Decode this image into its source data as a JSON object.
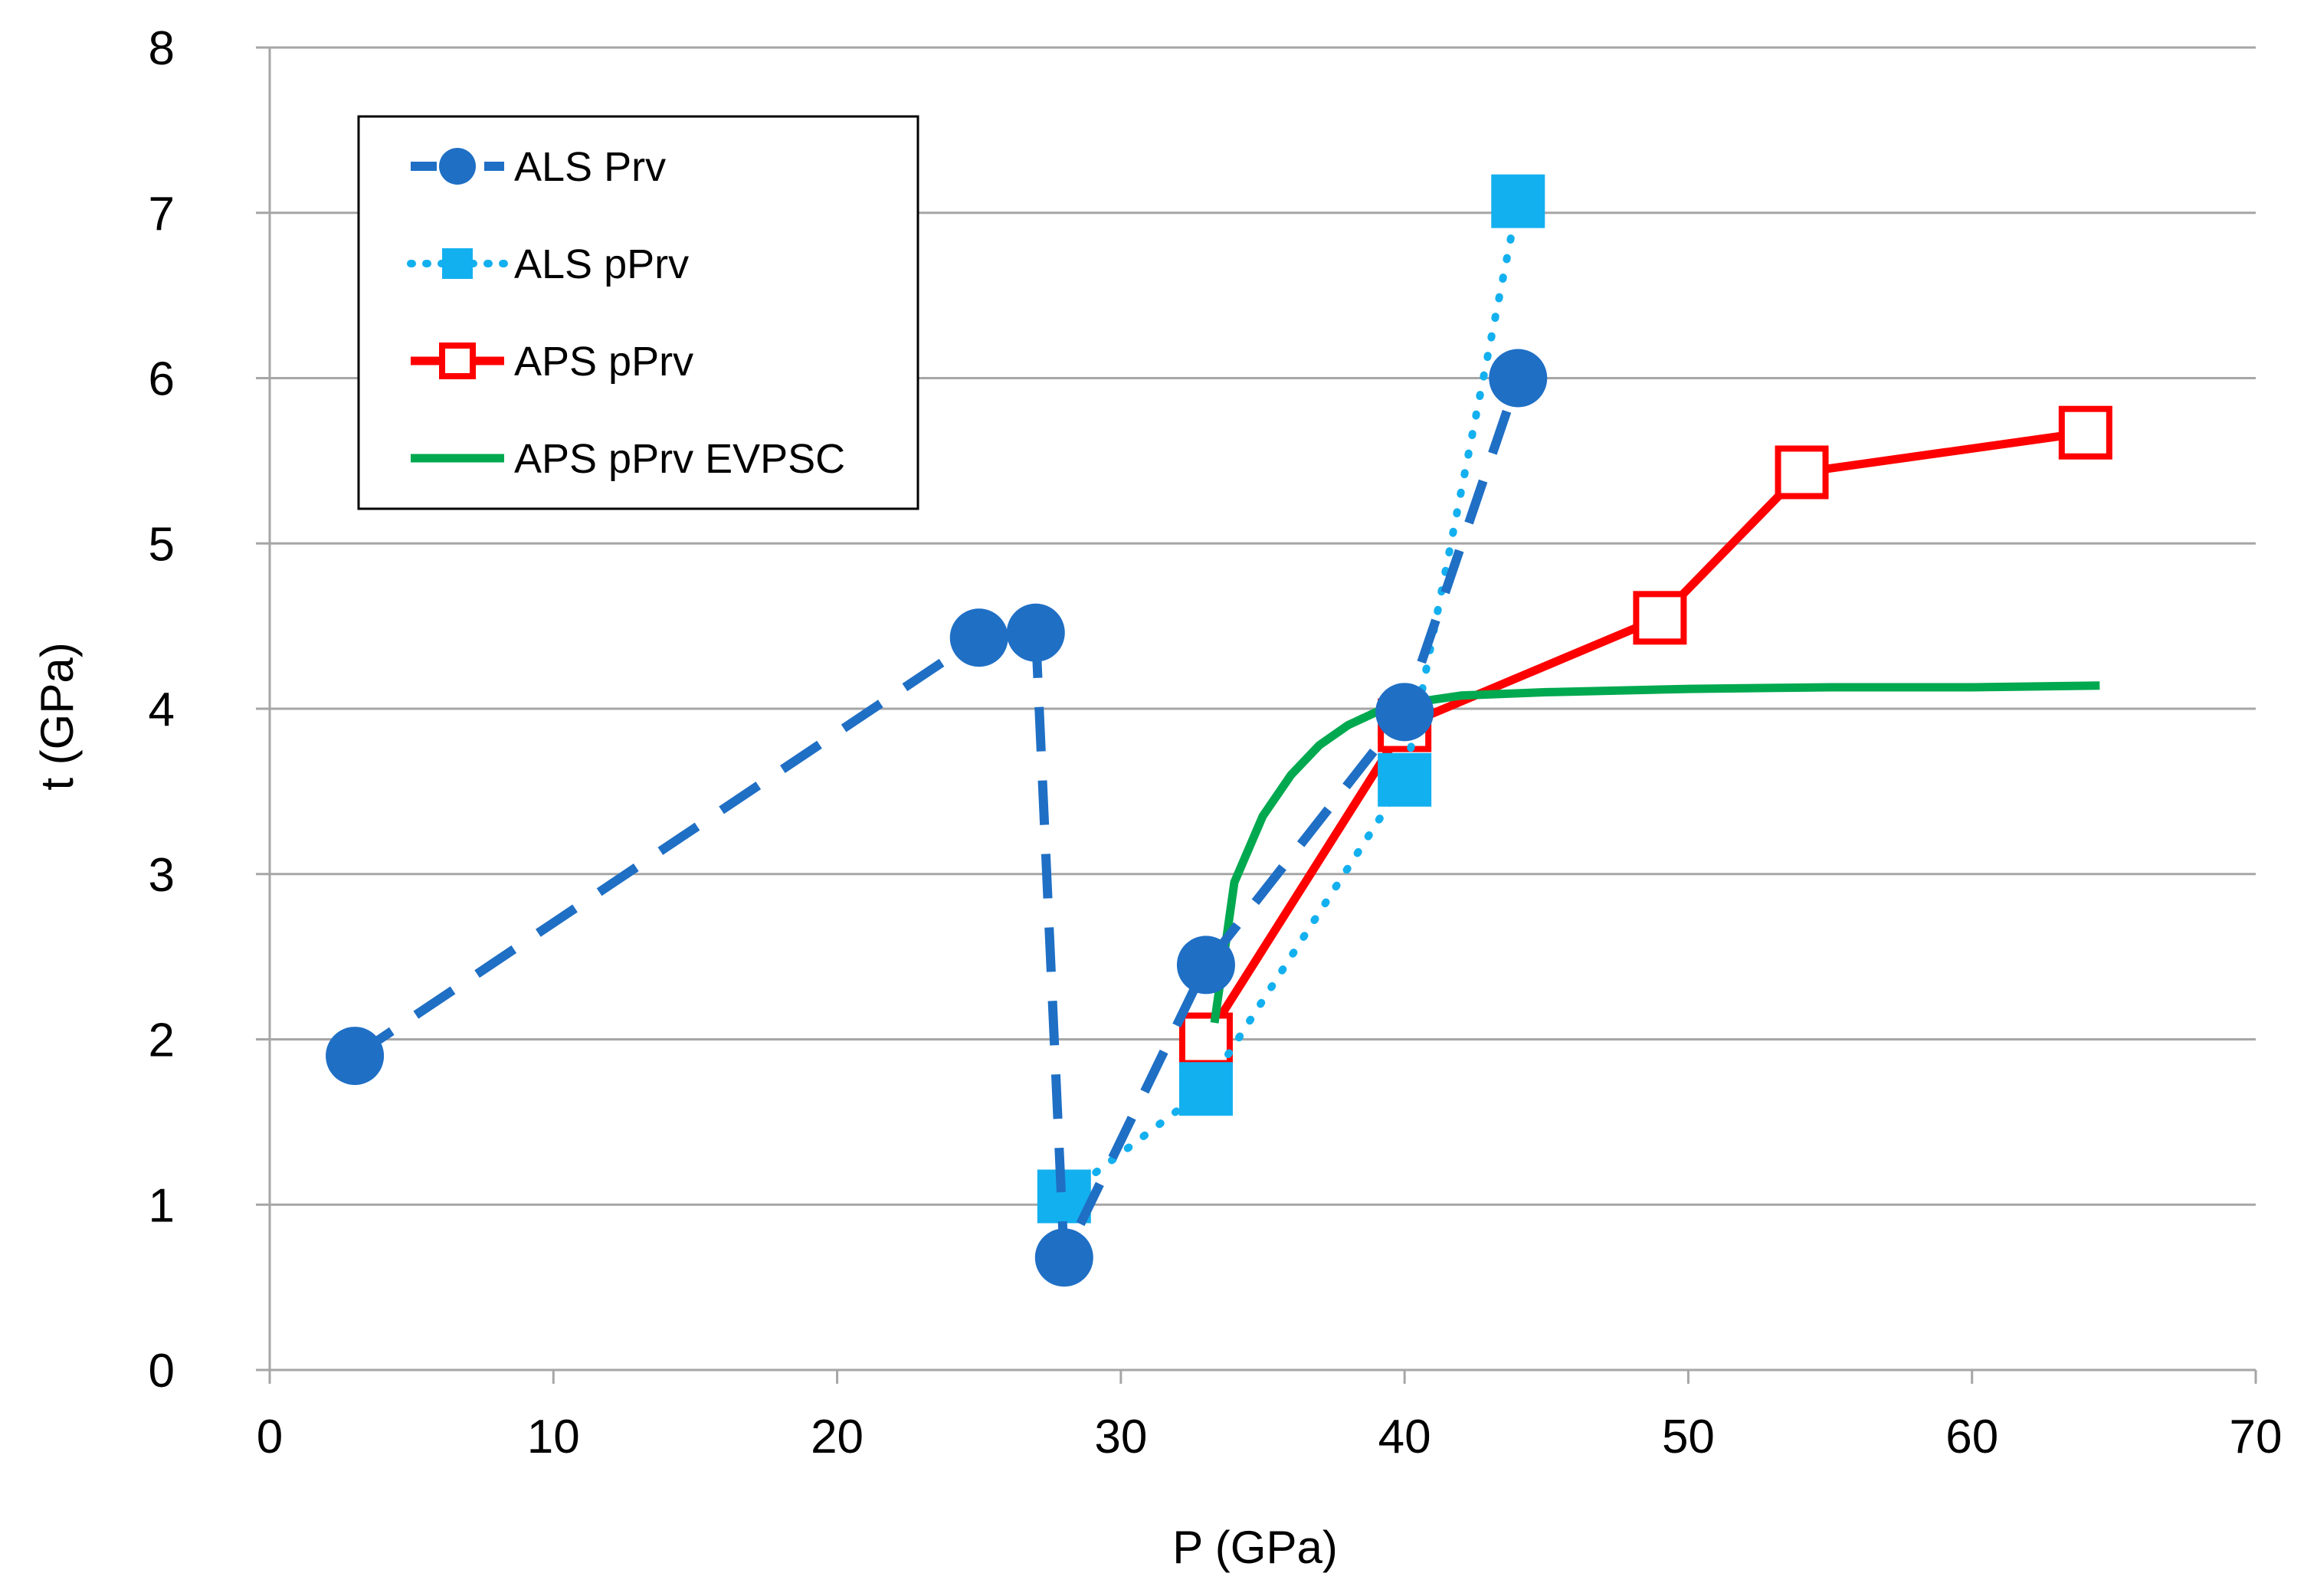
{
  "chart_data": {
    "type": "line",
    "title": "",
    "xlabel": "P (GPa)",
    "ylabel": "t (GPa)",
    "xlim": [
      0,
      70
    ],
    "ylim": [
      0,
      8
    ],
    "xticks": [
      0,
      10,
      20,
      30,
      40,
      50,
      60,
      70
    ],
    "yticks": [
      0,
      1,
      2,
      3,
      4,
      5,
      6,
      7,
      8
    ],
    "grid": "horizontal",
    "legend_position": "top-left",
    "series": [
      {
        "name": "ALS Prv",
        "color": "#1F6FC5",
        "line_style": "dashed",
        "marker": "circle-filled",
        "x": [
          3,
          25,
          27,
          28,
          33,
          40,
          44
        ],
        "y": [
          1.9,
          4.43,
          4.46,
          0.68,
          2.45,
          3.98,
          6.0
        ]
      },
      {
        "name": "ALS pPrv",
        "color": "#13B0EF",
        "line_style": "dotted",
        "marker": "square-filled",
        "x": [
          28,
          33,
          40,
          44
        ],
        "y": [
          1.05,
          1.7,
          3.57,
          7.07
        ]
      },
      {
        "name": "APS pPrv",
        "color": "#FF0000",
        "line_style": "solid",
        "marker": "square-open",
        "x": [
          33,
          40,
          49,
          54,
          64
        ],
        "y": [
          2.0,
          3.9,
          4.55,
          5.43,
          5.67
        ]
      },
      {
        "name": "APS pPrv EVPSC",
        "color": "#00A94F",
        "line_style": "solid",
        "marker": "none",
        "x": [
          33.3,
          34,
          35,
          36,
          37,
          38,
          39,
          40,
          42,
          45,
          50,
          55,
          60,
          64.5
        ],
        "y": [
          2.1,
          2.95,
          3.35,
          3.6,
          3.78,
          3.9,
          3.98,
          4.03,
          4.08,
          4.1,
          4.12,
          4.13,
          4.13,
          4.14
        ]
      }
    ]
  }
}
